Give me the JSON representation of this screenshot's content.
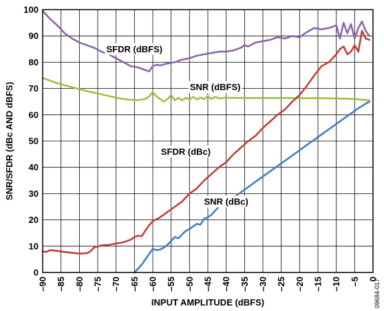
{
  "chart_data": {
    "type": "line",
    "xlabel": "INPUT AMPLITUDE (dBFS)",
    "ylabel": "SNR/SFDR (dBc AND dBFS)",
    "xlim": [
      -90,
      0
    ],
    "ylim": [
      0,
      100
    ],
    "x_ticks": [
      -90,
      -85,
      -80,
      -75,
      -70,
      -65,
      -60,
      -55,
      -50,
      -45,
      -40,
      -35,
      -30,
      -25,
      -20,
      -15,
      -10,
      -5,
      0
    ],
    "x_tick_labels": [
      "–90",
      "–85",
      "–80",
      "–75",
      "–70",
      "–65",
      "–60",
      "–55",
      "–50",
      "–45",
      "–40",
      "–35",
      "–30",
      "–25",
      "–20",
      "–15",
      "–10",
      "–5",
      "0"
    ],
    "y_ticks": [
      0,
      10,
      20,
      30,
      40,
      50,
      60,
      70,
      80,
      90,
      100
    ],
    "y_tick_labels": [
      "0",
      "10",
      "20",
      "30",
      "40",
      "50",
      "60",
      "70",
      "80",
      "90",
      "100"
    ],
    "grid": true,
    "figure_id": "09684-017",
    "series": [
      {
        "name": "SFDR (dBFS)",
        "color": "#8a65b0",
        "label_pos": [
          -65,
          85
        ],
        "x": [
          -90,
          -88,
          -86,
          -84,
          -82,
          -80,
          -78,
          -76,
          -74,
          -72,
          -70,
          -68,
          -66,
          -64,
          -62,
          -61,
          -60,
          -59,
          -58,
          -56,
          -54,
          -52,
          -50,
          -48,
          -46,
          -44,
          -42,
          -40,
          -38,
          -36,
          -35,
          -34,
          -32,
          -30,
          -28,
          -26,
          -24,
          -22,
          -20,
          -18,
          -16,
          -14,
          -12,
          -10,
          -9,
          -8,
          -7,
          -6,
          -5,
          -4,
          -3,
          -2,
          -1
        ],
        "y": [
          99.5,
          96.5,
          94,
          91,
          89,
          87.5,
          86.5,
          85.5,
          84,
          83,
          81.5,
          80,
          78.5,
          78,
          77,
          76.5,
          78.5,
          79,
          78.8,
          79.5,
          80,
          81,
          81.5,
          82.5,
          83,
          83.5,
          84,
          84,
          84.5,
          85.5,
          86.5,
          86,
          87.5,
          88,
          88.5,
          89.5,
          89,
          90,
          89.5,
          91.5,
          93,
          92.5,
          93,
          94,
          89,
          95,
          91,
          94.5,
          89,
          93,
          95.5,
          92,
          90
        ]
      },
      {
        "name": "SNR (dBFS)",
        "color": "#9dbf45",
        "label_pos": [
          -43,
          70.5
        ],
        "x": [
          -90,
          -86,
          -82,
          -78,
          -74,
          -70,
          -68,
          -66,
          -64,
          -62,
          -61,
          -60,
          -59,
          -58,
          -57,
          -56,
          -55,
          -54,
          -53,
          -52,
          -51,
          -50,
          -49,
          -48,
          -47,
          -46,
          -45,
          -44,
          -43,
          -42,
          -40,
          -35,
          -30,
          -25,
          -20,
          -15,
          -10,
          -5,
          -1
        ],
        "y": [
          74,
          72,
          70.5,
          69,
          67.8,
          66.5,
          66,
          65.7,
          65.6,
          66,
          67,
          68.5,
          67,
          66,
          65,
          66,
          67.5,
          65.5,
          66.5,
          65.5,
          66.5,
          65.8,
          66.8,
          65.8,
          66.5,
          66,
          67,
          66,
          66.8,
          66.2,
          66.5,
          66.4,
          66.4,
          66.4,
          66.3,
          66.3,
          66.2,
          66,
          65.5
        ]
      },
      {
        "name": "SFDR (dBc)",
        "color": "#c0403a",
        "label_pos": [
          -51,
          46
        ],
        "x": [
          -90,
          -89,
          -88,
          -86,
          -84,
          -82,
          -80,
          -78,
          -77,
          -76,
          -74,
          -72,
          -70,
          -68,
          -66,
          -65,
          -64,
          -63,
          -62,
          -61,
          -60,
          -58,
          -56,
          -54,
          -52,
          -50,
          -48,
          -46,
          -44,
          -42,
          -40,
          -38,
          -36,
          -34,
          -32,
          -30,
          -28,
          -26,
          -24,
          -22,
          -20,
          -18,
          -16,
          -14,
          -12,
          -10,
          -9,
          -8,
          -7,
          -6,
          -5,
          -4,
          -3,
          -2,
          -1
        ],
        "y": [
          8,
          7.8,
          8.5,
          8.2,
          7.8,
          7.5,
          7.2,
          7.3,
          8,
          9.5,
          10.3,
          10.5,
          11,
          11.5,
          12.5,
          13.5,
          14,
          13.8,
          16,
          18,
          19.5,
          21,
          23,
          25,
          27,
          30,
          32,
          35,
          37.5,
          40,
          42,
          45,
          47.5,
          50,
          52,
          55,
          57.5,
          60,
          62,
          65,
          67.5,
          71,
          75,
          78.5,
          80,
          83,
          85,
          86,
          83,
          84,
          86.5,
          84,
          92,
          89,
          88.5
        ]
      },
      {
        "name": "SNR (dBc)",
        "color": "#3f7fc1",
        "label_pos": [
          -40,
          27
        ],
        "x": [
          -65,
          -64,
          -63,
          -62,
          -61,
          -60,
          -59,
          -58,
          -57,
          -56,
          -55,
          -54,
          -53,
          -52,
          -51,
          -50,
          -49,
          -48,
          -47,
          -46,
          -45,
          -44,
          -43,
          -42,
          -41,
          -40,
          -38,
          -36,
          -34,
          -32,
          -30,
          -28,
          -26,
          -24,
          -22,
          -20,
          -18,
          -16,
          -14,
          -12,
          -10,
          -8,
          -6,
          -4,
          -2,
          -1
        ],
        "y": [
          0,
          1.5,
          3,
          5,
          7,
          9,
          8.5,
          8.7,
          9.5,
          10.5,
          12,
          13.5,
          13,
          14.5,
          15.8,
          16.5,
          17.5,
          18.5,
          18.2,
          20.5,
          21,
          22,
          23.5,
          25,
          25.8,
          26.5,
          28.5,
          30.5,
          32.5,
          34.5,
          36.5,
          38.5,
          40.5,
          42.5,
          44.5,
          46.5,
          48.5,
          50.5,
          52.5,
          54.5,
          56.5,
          58.5,
          60.5,
          62.5,
          64.2,
          65
        ]
      }
    ]
  }
}
